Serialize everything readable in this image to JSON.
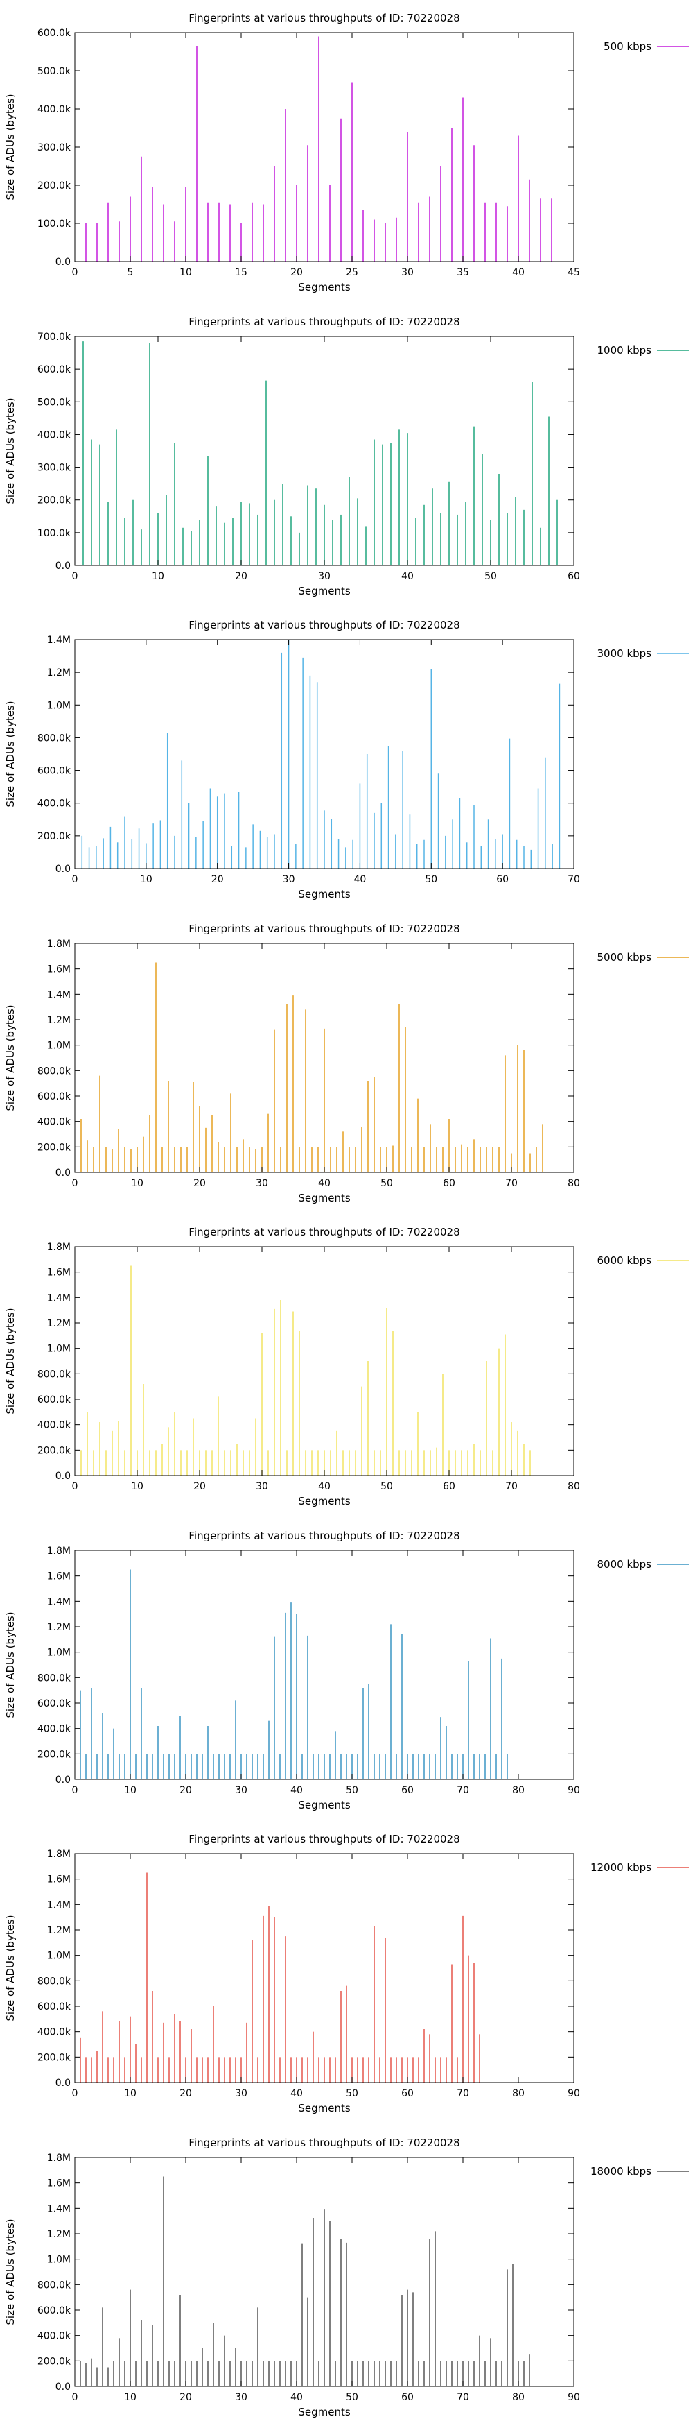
{
  "chart_data": [
    {
      "type": "bar",
      "title": "Fingerprints at various throughputs of ID: 70220028",
      "xlabel": "Segments",
      "ylabel": "Size of ADUs (bytes)",
      "xlim": [
        0,
        45
      ],
      "ylim": [
        0,
        600000
      ],
      "xticks": [
        "0",
        "5",
        "10",
        "15",
        "20",
        "25",
        "30",
        "35",
        "40",
        "45"
      ],
      "yticks": [
        "0.0",
        "100.0k",
        "200.0k",
        "300.0k",
        "400.0k",
        "500.0k",
        "600.0k"
      ],
      "grid": false,
      "legend": "top-right",
      "color": "#c41cdc",
      "series": [
        {
          "name": "500 kbps",
          "values": [
            100000,
            100000,
            155000,
            105000,
            170000,
            275000,
            195000,
            150000,
            105000,
            195000,
            565000,
            155000,
            155000,
            150000,
            100000,
            155000,
            150000,
            250000,
            400000,
            200000,
            305000,
            590000,
            200000,
            375000,
            470000,
            135000,
            110000,
            100000,
            115000,
            340000,
            155000,
            170000,
            250000,
            350000,
            430000,
            305000,
            155000,
            155000,
            145000,
            330000,
            215000,
            165000,
            165000
          ]
        }
      ]
    },
    {
      "type": "bar",
      "title": "Fingerprints at various throughputs of ID: 70220028",
      "xlabel": "Segments",
      "ylabel": "Size of ADUs (bytes)",
      "xlim": [
        0,
        60
      ],
      "ylim": [
        0,
        700000
      ],
      "xticks": [
        "0",
        "10",
        "20",
        "30",
        "40",
        "50",
        "60"
      ],
      "yticks": [
        "0.0",
        "100.0k",
        "200.0k",
        "300.0k",
        "400.0k",
        "500.0k",
        "600.0k",
        "700.0k"
      ],
      "grid": false,
      "legend": "top-right",
      "color": "#1fa57d",
      "series": [
        {
          "name": "1000 kbps",
          "values": [
            685000,
            385000,
            370000,
            195000,
            415000,
            145000,
            200000,
            110000,
            680000,
            160000,
            215000,
            375000,
            115000,
            105000,
            140000,
            335000,
            180000,
            130000,
            145000,
            195000,
            190000,
            155000,
            565000,
            200000,
            250000,
            150000,
            100000,
            245000,
            235000,
            185000,
            140000,
            155000,
            270000,
            205000,
            120000,
            385000,
            370000,
            375000,
            415000,
            405000,
            145000,
            185000,
            235000,
            160000,
            255000,
            155000,
            195000,
            425000,
            340000,
            140000,
            280000,
            160000,
            210000,
            170000,
            560000,
            115000,
            455000,
            200000
          ]
        }
      ]
    },
    {
      "type": "bar",
      "title": "Fingerprints at various throughputs of ID: 70220028",
      "xlabel": "Segments",
      "ylabel": "Size of ADUs (bytes)",
      "xlim": [
        0,
        70
      ],
      "ylim": [
        0,
        1400000
      ],
      "xticks": [
        "0",
        "10",
        "20",
        "30",
        "40",
        "50",
        "60",
        "70"
      ],
      "yticks": [
        "0.0",
        "200.0k",
        "400.0k",
        "600.0k",
        "800.0k",
        "1.0M",
        "1.2M",
        "1.4M"
      ],
      "grid": false,
      "legend": "top-right",
      "color": "#55b4e6",
      "series": [
        {
          "name": "3000 kbps",
          "values": [
            200000,
            130000,
            140000,
            185000,
            255000,
            160000,
            320000,
            180000,
            245000,
            155000,
            275000,
            295000,
            830000,
            200000,
            660000,
            400000,
            195000,
            290000,
            490000,
            440000,
            460000,
            140000,
            470000,
            130000,
            270000,
            230000,
            195000,
            210000,
            1320000,
            1400000,
            150000,
            1290000,
            1180000,
            1140000,
            355000,
            305000,
            180000,
            130000,
            175000,
            520000,
            700000,
            340000,
            400000,
            750000,
            210000,
            720000,
            330000,
            150000,
            175000,
            1220000,
            580000,
            200000,
            300000,
            430000,
            160000,
            390000,
            140000,
            300000,
            180000,
            210000,
            795000,
            175000,
            140000,
            115000,
            490000,
            680000,
            150000,
            1130000
          ]
        }
      ]
    },
    {
      "type": "bar",
      "title": "Fingerprints at various throughputs of ID: 70220028",
      "xlabel": "Segments",
      "ylabel": "Size of ADUs (bytes)",
      "xlim": [
        0,
        80
      ],
      "ylim": [
        0,
        1800000
      ],
      "xticks": [
        "0",
        "10",
        "20",
        "30",
        "40",
        "50",
        "60",
        "70",
        "80"
      ],
      "yticks": [
        "0.0",
        "200.0k",
        "400.0k",
        "600.0k",
        "800.0k",
        "1.0M",
        "1.2M",
        "1.4M",
        "1.6M",
        "1.8M"
      ],
      "grid": false,
      "legend": "top-right",
      "color": "#e5a020",
      "series": [
        {
          "name": "5000 kbps",
          "values": [
            420000,
            250000,
            200000,
            760000,
            200000,
            180000,
            340000,
            200000,
            180000,
            200000,
            280000,
            450000,
            1650000,
            200000,
            720000,
            200000,
            200000,
            200000,
            710000,
            520000,
            350000,
            450000,
            240000,
            200000,
            620000,
            200000,
            260000,
            200000,
            180000,
            200000,
            460000,
            1120000,
            200000,
            1320000,
            1390000,
            200000,
            1280000,
            200000,
            200000,
            1130000,
            200000,
            200000,
            320000,
            200000,
            200000,
            360000,
            720000,
            750000,
            200000,
            200000,
            210000,
            1320000,
            1140000,
            200000,
            580000,
            200000,
            380000,
            200000,
            200000,
            420000,
            200000,
            220000,
            200000,
            260000,
            200000,
            200000,
            200000,
            200000,
            920000,
            150000,
            1000000,
            960000,
            150000,
            200000,
            380000
          ]
        }
      ]
    },
    {
      "type": "bar",
      "title": "Fingerprints at various throughputs of ID: 70220028",
      "xlabel": "Segments",
      "ylabel": "Size of ADUs (bytes)",
      "xlim": [
        0,
        80
      ],
      "ylim": [
        0,
        1800000
      ],
      "xticks": [
        "0",
        "10",
        "20",
        "30",
        "40",
        "50",
        "60",
        "70",
        "80"
      ],
      "yticks": [
        "0.0",
        "200.0k",
        "400.0k",
        "600.0k",
        "800.0k",
        "1.0M",
        "1.2M",
        "1.4M",
        "1.6M",
        "1.8M"
      ],
      "grid": false,
      "legend": "top-right",
      "color": "#f2e462",
      "series": [
        {
          "name": "6000 kbps",
          "values": [
            200000,
            500000,
            200000,
            420000,
            200000,
            350000,
            430000,
            200000,
            1650000,
            200000,
            720000,
            200000,
            200000,
            250000,
            380000,
            500000,
            200000,
            200000,
            450000,
            200000,
            200000,
            200000,
            620000,
            200000,
            200000,
            250000,
            200000,
            200000,
            450000,
            1120000,
            200000,
            1310000,
            1380000,
            200000,
            1290000,
            1140000,
            200000,
            200000,
            200000,
            200000,
            200000,
            350000,
            200000,
            200000,
            200000,
            700000,
            900000,
            200000,
            200000,
            1320000,
            1140000,
            200000,
            200000,
            200000,
            500000,
            200000,
            200000,
            220000,
            800000,
            200000,
            200000,
            200000,
            200000,
            250000,
            200000,
            900000,
            200000,
            1000000,
            1110000,
            420000,
            350000,
            250000,
            200000
          ]
        }
      ]
    },
    {
      "type": "bar",
      "title": "Fingerprints at various throughputs of ID: 70220028",
      "xlabel": "Segments",
      "ylabel": "Size of ADUs (bytes)",
      "xlim": [
        0,
        90
      ],
      "ylim": [
        0,
        1800000
      ],
      "xticks": [
        "0",
        "10",
        "20",
        "30",
        "40",
        "50",
        "60",
        "70",
        "80",
        "90"
      ],
      "yticks": [
        "0.0",
        "200.0k",
        "400.0k",
        "600.0k",
        "800.0k",
        "1.0M",
        "1.2M",
        "1.4M",
        "1.6M",
        "1.8M"
      ],
      "grid": false,
      "legend": "top-right",
      "color": "#3a95c4",
      "series": [
        {
          "name": "8000 kbps",
          "values": [
            700000,
            200000,
            720000,
            200000,
            520000,
            200000,
            400000,
            200000,
            200000,
            1650000,
            200000,
            720000,
            200000,
            200000,
            420000,
            200000,
            200000,
            200000,
            500000,
            200000,
            200000,
            200000,
            200000,
            420000,
            200000,
            200000,
            200000,
            200000,
            620000,
            200000,
            200000,
            200000,
            200000,
            200000,
            460000,
            1120000,
            200000,
            1310000,
            1390000,
            1300000,
            200000,
            1130000,
            200000,
            200000,
            200000,
            200000,
            380000,
            200000,
            200000,
            200000,
            200000,
            720000,
            750000,
            200000,
            200000,
            200000,
            1220000,
            200000,
            1140000,
            200000,
            200000,
            200000,
            200000,
            200000,
            200000,
            490000,
            420000,
            200000,
            200000,
            200000,
            930000,
            200000,
            200000,
            200000,
            1110000,
            200000,
            950000,
            200000
          ]
        }
      ]
    },
    {
      "type": "bar",
      "title": "Fingerprints at various throughputs of ID: 70220028",
      "xlabel": "Segments",
      "ylabel": "Size of ADUs (bytes)",
      "xlim": [
        0,
        90
      ],
      "ylim": [
        0,
        1800000
      ],
      "xticks": [
        "0",
        "10",
        "20",
        "30",
        "40",
        "50",
        "60",
        "70",
        "80",
        "90"
      ],
      "yticks": [
        "0.0",
        "200.0k",
        "400.0k",
        "600.0k",
        "800.0k",
        "1.0M",
        "1.2M",
        "1.4M",
        "1.6M",
        "1.8M"
      ],
      "grid": false,
      "legend": "top-right",
      "color": "#e6554a",
      "series": [
        {
          "name": "12000 kbps",
          "values": [
            350000,
            200000,
            200000,
            250000,
            560000,
            200000,
            200000,
            480000,
            200000,
            520000,
            300000,
            200000,
            1650000,
            720000,
            200000,
            470000,
            200000,
            540000,
            480000,
            200000,
            420000,
            200000,
            200000,
            200000,
            600000,
            200000,
            200000,
            200000,
            200000,
            200000,
            470000,
            1120000,
            200000,
            1310000,
            1390000,
            1300000,
            200000,
            1150000,
            200000,
            200000,
            200000,
            200000,
            400000,
            200000,
            200000,
            200000,
            200000,
            720000,
            760000,
            200000,
            200000,
            200000,
            200000,
            1230000,
            200000,
            1140000,
            200000,
            200000,
            200000,
            200000,
            200000,
            200000,
            420000,
            380000,
            200000,
            200000,
            200000,
            930000,
            200000,
            1310000,
            1000000,
            940000,
            380000
          ]
        }
      ]
    },
    {
      "type": "bar",
      "title": "Fingerprints at various throughputs of ID: 70220028",
      "xlabel": "Segments",
      "ylabel": "Size of ADUs (bytes)",
      "xlim": [
        0,
        90
      ],
      "ylim": [
        0,
        1800000
      ],
      "xticks": [
        "0",
        "10",
        "20",
        "30",
        "40",
        "50",
        "60",
        "70",
        "80",
        "90"
      ],
      "yticks": [
        "0.0",
        "200.0k",
        "400.0k",
        "600.0k",
        "800.0k",
        "1.0M",
        "1.2M",
        "1.4M",
        "1.6M",
        "1.8M"
      ],
      "grid": false,
      "legend": "top-right",
      "color": "#555555",
      "series": [
        {
          "name": "18000 kbps",
          "values": [
            200000,
            180000,
            220000,
            150000,
            620000,
            150000,
            200000,
            380000,
            200000,
            760000,
            200000,
            520000,
            200000,
            480000,
            200000,
            1650000,
            200000,
            200000,
            720000,
            200000,
            200000,
            200000,
            300000,
            200000,
            500000,
            200000,
            400000,
            200000,
            300000,
            200000,
            200000,
            200000,
            620000,
            200000,
            200000,
            200000,
            200000,
            200000,
            200000,
            200000,
            1120000,
            700000,
            1320000,
            200000,
            1390000,
            1300000,
            200000,
            1160000,
            1130000,
            200000,
            200000,
            200000,
            200000,
            200000,
            200000,
            200000,
            200000,
            200000,
            720000,
            760000,
            740000,
            200000,
            200000,
            1160000,
            1220000,
            200000,
            200000,
            200000,
            200000,
            200000,
            200000,
            200000,
            400000,
            200000,
            380000,
            200000,
            200000,
            920000,
            960000,
            200000,
            200000,
            250000
          ]
        }
      ]
    }
  ]
}
